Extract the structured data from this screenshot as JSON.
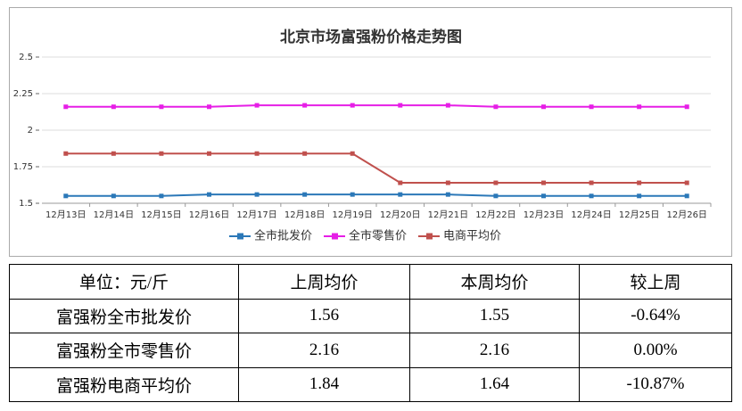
{
  "chart_data": {
    "type": "line",
    "title": "北京市场富强粉价格走势图",
    "categories": [
      "12月13日",
      "12月14日",
      "12月15日",
      "12月16日",
      "12月17日",
      "12月18日",
      "12月19日",
      "12月20日",
      "12月21日",
      "12月22日",
      "12月23日",
      "12月24日",
      "12月25日",
      "12月26日"
    ],
    "series": [
      {
        "name": "全市批发价",
        "color": "#2b78b8",
        "values": [
          1.55,
          1.55,
          1.55,
          1.56,
          1.56,
          1.56,
          1.56,
          1.56,
          1.56,
          1.55,
          1.55,
          1.55,
          1.55,
          1.55
        ]
      },
      {
        "name": "全市零售价",
        "color": "#e61ee6",
        "values": [
          2.16,
          2.16,
          2.16,
          2.16,
          2.17,
          2.17,
          2.17,
          2.17,
          2.17,
          2.16,
          2.16,
          2.16,
          2.16,
          2.16
        ]
      },
      {
        "name": "电商平均价",
        "color": "#c0504d",
        "values": [
          1.84,
          1.84,
          1.84,
          1.84,
          1.84,
          1.84,
          1.84,
          1.64,
          1.64,
          1.64,
          1.64,
          1.64,
          1.64,
          1.64
        ]
      }
    ],
    "ylim": [
      1.5,
      2.5
    ],
    "yticks": [
      1.5,
      1.75,
      2,
      2.25,
      2.5
    ],
    "grid": true,
    "legend": "bottom"
  },
  "table": {
    "header": [
      "单位：元/斤",
      "上周均价",
      "本周均价",
      "较上周"
    ],
    "rows": [
      [
        "富强粉全市批发价",
        "1.56",
        "1.55",
        "-0.64%"
      ],
      [
        "富强粉全市零售价",
        "2.16",
        "2.16",
        "0.00%"
      ],
      [
        "富强粉电商平均价",
        "1.84",
        "1.64",
        "-10.87%"
      ]
    ]
  }
}
